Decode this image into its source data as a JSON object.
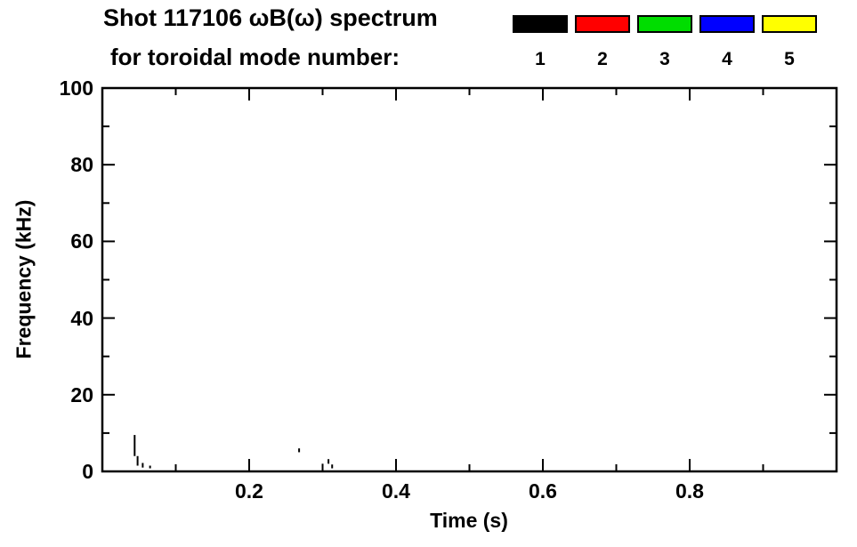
{
  "chart_data": {
    "type": "scatter",
    "subtype": "magnetic-fluctuation spectrogram (sparse marks)",
    "title": "Shot 117106 ωB(ω) spectrum",
    "subtitle": "for toroidal mode number:",
    "xlabel": "Time (s)",
    "ylabel": "Frequency (kHz)",
    "xlim": [
      0,
      1.0
    ],
    "ylim": [
      0,
      100
    ],
    "grid": false,
    "x_ticks": {
      "major": [
        0.2,
        0.4,
        0.6,
        0.8
      ],
      "labels": [
        "0.2",
        "0.4",
        "0.6",
        "0.8"
      ],
      "minor": [
        0.1,
        0.3,
        0.5,
        0.7,
        0.9
      ]
    },
    "y_ticks": {
      "major": [
        0,
        20,
        40,
        60,
        80,
        100
      ],
      "labels": [
        "0",
        "20",
        "40",
        "60",
        "80",
        "100"
      ],
      "minor": [
        10,
        30,
        50,
        70,
        90
      ]
    },
    "legend": {
      "position": "top-right",
      "entries": [
        {
          "label": "1",
          "color": "#000000"
        },
        {
          "label": "2",
          "color": "#ff0000"
        },
        {
          "label": "3",
          "color": "#00dd00"
        },
        {
          "label": "4",
          "color": "#0000ff"
        },
        {
          "label": "5",
          "color": "#ffff00"
        }
      ]
    },
    "series": [
      {
        "name": "mode 1",
        "color": "#000000",
        "segments": [
          {
            "t": 0.044,
            "f": [
              4.0,
              9.5
            ]
          },
          {
            "t": 0.048,
            "f": [
              1.5,
              4.0
            ]
          },
          {
            "t": 0.055,
            "f": [
              1.0,
              2.2
            ]
          },
          {
            "t": 0.065,
            "f": [
              0.8,
              1.5
            ]
          },
          {
            "t": 0.268,
            "f": [
              5.0,
              6.0
            ]
          },
          {
            "t": 0.3,
            "f": [
              0.8,
              2.0
            ]
          },
          {
            "t": 0.308,
            "f": [
              2.0,
              3.2
            ]
          },
          {
            "t": 0.313,
            "f": [
              0.8,
              1.8
            ]
          }
        ]
      }
    ]
  }
}
